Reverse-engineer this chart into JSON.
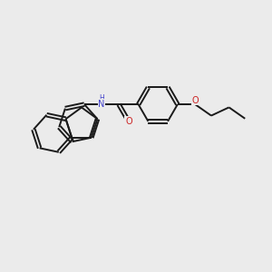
{
  "background_color": "#ebebeb",
  "bond_color": "#1a1a1a",
  "N_color": "#4444cc",
  "O_color": "#cc2222",
  "line_width": 1.4,
  "figsize": [
    3.0,
    3.0
  ],
  "dpi": 100,
  "xlim": [
    0,
    10
  ],
  "ylim": [
    0,
    10
  ]
}
